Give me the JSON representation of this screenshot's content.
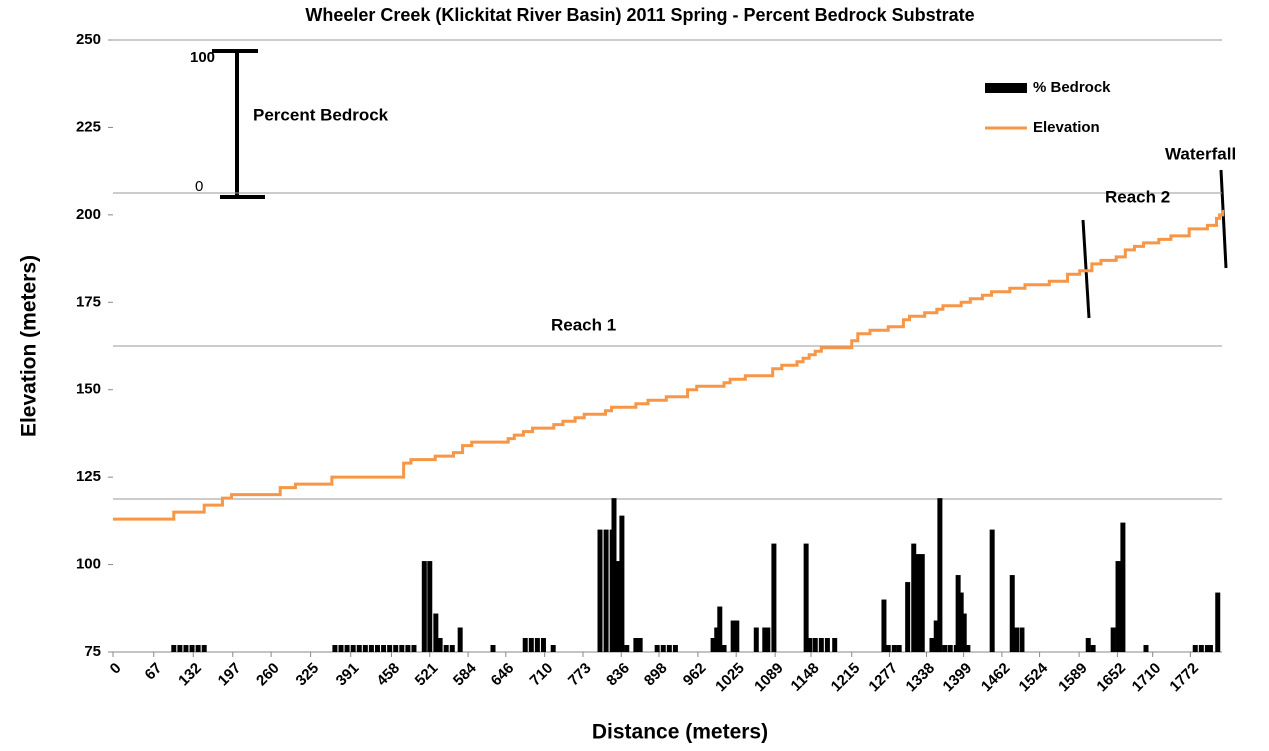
{
  "chart_data": {
    "type": "combo",
    "title": "Wheeler Creek (Klickitat River Basin) 2011 Spring - Percent Bedrock Substrate",
    "xlabel": "Distance (meters)",
    "ylabel": "Elevation  (meters)",
    "xlim": [
      0,
      1824
    ],
    "xticks": [
      0,
      67,
      132,
      197,
      260,
      325,
      391,
      458,
      521,
      584,
      646,
      710,
      773,
      836,
      898,
      962,
      1025,
      1089,
      1148,
      1215,
      1277,
      1338,
      1399,
      1462,
      1524,
      1589,
      1652,
      1710,
      1772
    ],
    "ylim": [
      75,
      250
    ],
    "yticks": [
      75,
      100,
      125,
      150,
      175,
      200,
      225,
      250
    ],
    "grid_lines": [
      118.75,
      162.5,
      206.25,
      250
    ],
    "legend": "upper right",
    "annotations": [
      "100",
      "0",
      "Percent Bedrock",
      "Reach 1",
      "Reach 2",
      "Waterfall"
    ],
    "series": [
      {
        "name": "% Bedrock",
        "type": "bar",
        "color": "#000000",
        "x": [
          100,
          110,
          120,
          130,
          140,
          150,
          365,
          375,
          385,
          395,
          405,
          415,
          425,
          435,
          445,
          455,
          465,
          475,
          485,
          495,
          512,
          521,
          531,
          538,
          548,
          558,
          571,
          625,
          678,
          688,
          698,
          708,
          724,
          801,
          811,
          821,
          824,
          831,
          837,
          845,
          860,
          867,
          895,
          905,
          915,
          925,
          987,
          993,
          998,
          1005,
          1020,
          1026,
          1058,
          1072,
          1077,
          1087,
          1140,
          1146,
          1155,
          1165,
          1175,
          1187,
          1268,
          1275,
          1285,
          1293,
          1307,
          1317,
          1324,
          1331,
          1347,
          1354,
          1360,
          1368,
          1377,
          1387,
          1390,
          1395,
          1400,
          1406,
          1446,
          1479,
          1486,
          1495,
          1604,
          1612,
          1645,
          1653,
          1661,
          1699,
          1780,
          1790,
          1800,
          1805,
          1817
        ],
        "values": [
          77,
          77,
          77,
          77,
          77,
          77,
          77,
          77,
          77,
          77,
          77,
          77,
          77,
          77,
          77,
          77,
          77,
          77,
          77,
          77,
          101,
          101,
          86,
          79,
          77,
          77,
          82,
          77,
          79,
          79,
          79,
          79,
          77,
          110,
          110,
          110,
          119,
          101,
          114,
          77,
          79,
          79,
          77,
          77,
          77,
          77,
          79,
          82,
          88,
          77,
          84,
          84,
          82,
          82,
          82,
          106,
          106,
          79,
          79,
          79,
          79,
          79,
          90,
          77,
          77,
          77,
          95,
          106,
          103,
          103,
          79,
          84,
          119,
          77,
          77,
          77,
          97,
          92,
          86,
          77,
          110,
          97,
          82,
          82,
          79,
          77,
          82,
          101,
          112,
          77,
          77,
          77,
          77,
          77,
          92
        ]
      },
      {
        "name": "Elevation",
        "type": "line",
        "color": "#f79646",
        "x": [
          0,
          100,
          150,
          180,
          195,
          275,
          300,
          360,
          478,
          490,
          530,
          560,
          575,
          590,
          650,
          660,
          675,
          690,
          725,
          740,
          760,
          775,
          810,
          820,
          860,
          880,
          910,
          945,
          960,
          1005,
          1015,
          1040,
          1085,
          1100,
          1125,
          1135,
          1145,
          1155,
          1165,
          1215,
          1225,
          1245,
          1275,
          1300,
          1310,
          1335,
          1355,
          1365,
          1395,
          1410,
          1430,
          1445,
          1475,
          1500,
          1540,
          1570,
          1590,
          1610,
          1625,
          1650,
          1665,
          1680,
          1695,
          1720,
          1740,
          1770,
          1800,
          1815,
          1820,
          1825
        ],
        "values": [
          113,
          115,
          117,
          119,
          120,
          122,
          123,
          125,
          129,
          130,
          131,
          132,
          134,
          135,
          136,
          137,
          138,
          139,
          140,
          141,
          142,
          143,
          144,
          145,
          146,
          147,
          148,
          150,
          151,
          152,
          153,
          154,
          156,
          157,
          158,
          159,
          160,
          161,
          162,
          164,
          166,
          167,
          168,
          170,
          171,
          172,
          173,
          174,
          175,
          176,
          177,
          178,
          179,
          180,
          181,
          183,
          184,
          186,
          187,
          188,
          190,
          191,
          192,
          193,
          194,
          196,
          197,
          199,
          200,
          201
        ]
      }
    ]
  }
}
